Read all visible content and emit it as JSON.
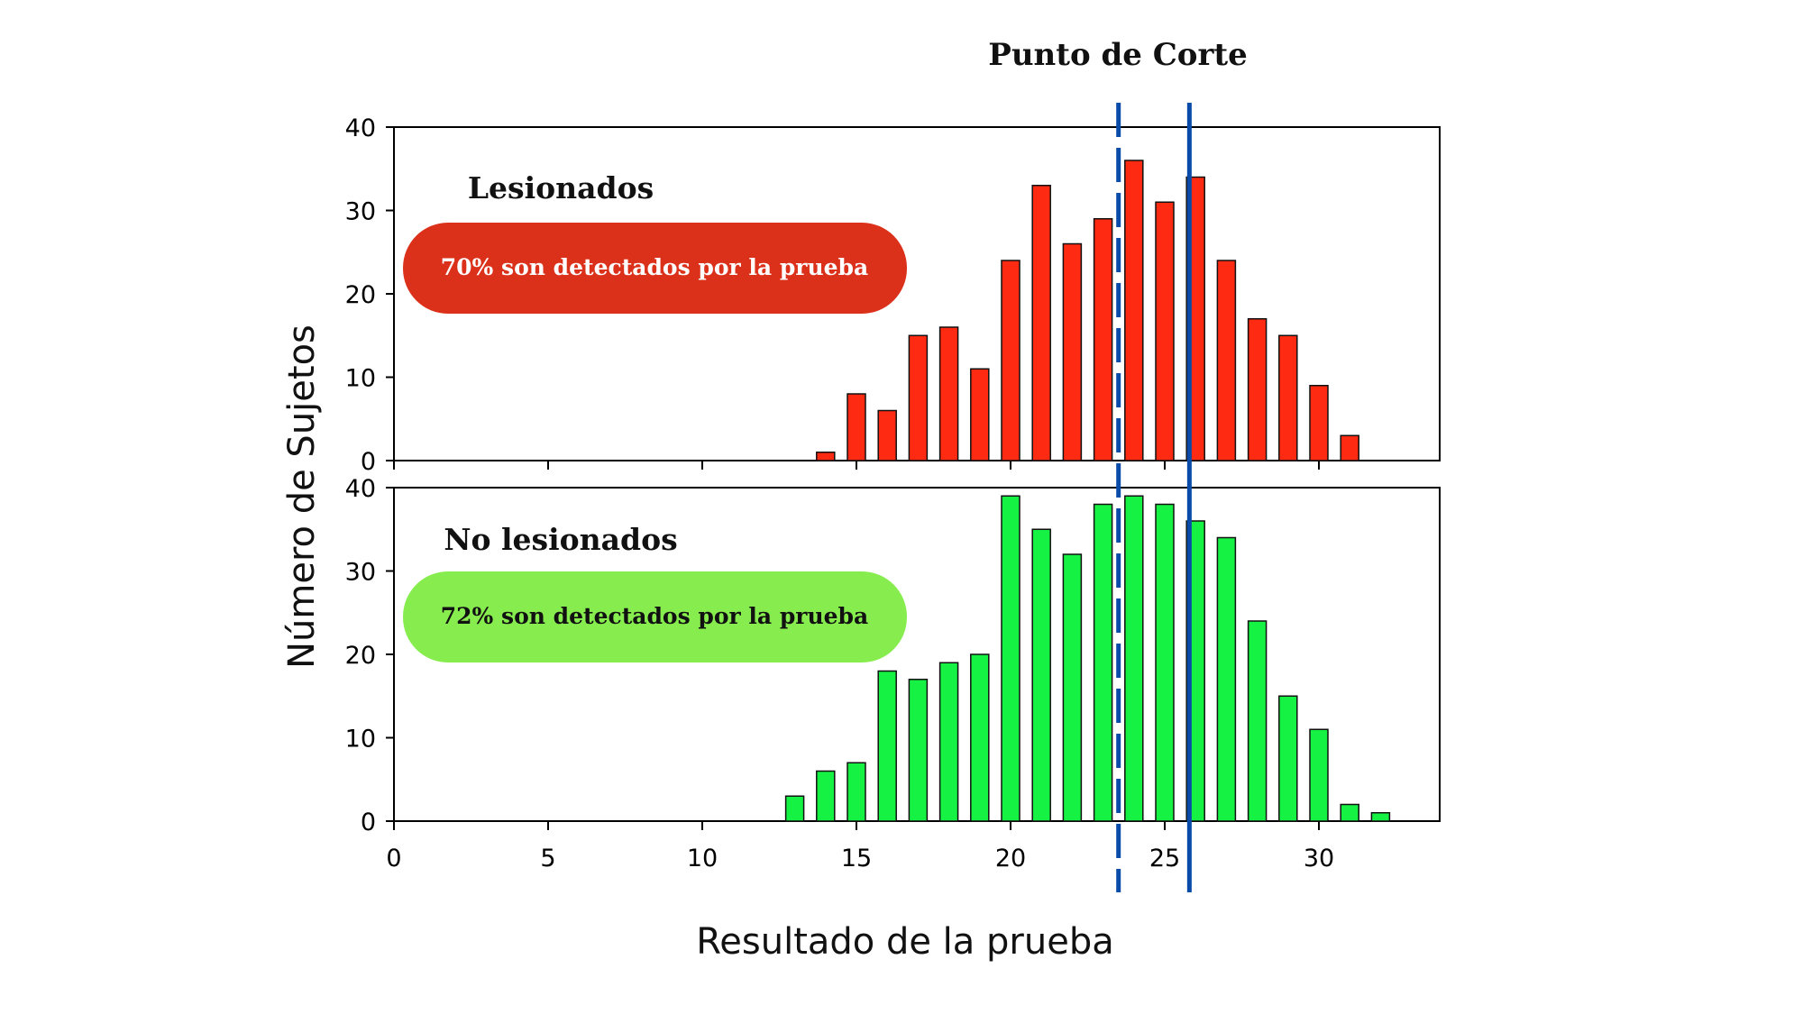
{
  "cutoff_label": "Punto de Corte",
  "colors": {
    "injured_bar": "#ff2a12",
    "uninjured_bar": "#16f243",
    "injured_pill": "#db311b",
    "uninjured_pill": "#87ed4e",
    "cutoff_line": "#0a4aa8"
  },
  "chart_data": [
    {
      "type": "bar",
      "panel": "top",
      "group_label": "Lesionados",
      "annotation": "70% son detectados por la prueba",
      "xlabel": "Resultado de la prueba",
      "ylabel": "Número de Sujetos",
      "xlim": [
        0,
        34
      ],
      "ylim": [
        0,
        40
      ],
      "yticks": [
        0,
        10,
        20,
        30,
        40
      ],
      "xticks": [
        0,
        5,
        10,
        15,
        20,
        25,
        30
      ],
      "x": [
        14,
        15,
        16,
        17,
        18,
        19,
        20,
        21,
        22,
        23,
        24,
        25,
        26,
        27,
        28,
        29,
        30,
        31
      ],
      "values": [
        1,
        8,
        6,
        15,
        16,
        11,
        24,
        33,
        26,
        29,
        36,
        31,
        34,
        24,
        17,
        15,
        9,
        3
      ]
    },
    {
      "type": "bar",
      "panel": "bottom",
      "group_label": "No lesionados",
      "annotation": "72% son detectados por la prueba",
      "xlabel": "Resultado de la prueba",
      "ylabel": "Número de Sujetos",
      "xlim": [
        0,
        34
      ],
      "ylim": [
        0,
        40
      ],
      "yticks": [
        0,
        10,
        20,
        30,
        40
      ],
      "xticks": [
        0,
        5,
        10,
        15,
        20,
        25,
        30
      ],
      "x": [
        13,
        14,
        15,
        16,
        17,
        18,
        19,
        20,
        21,
        22,
        23,
        24,
        25,
        26,
        27,
        28,
        29,
        30,
        31,
        32
      ],
      "values": [
        3,
        6,
        7,
        18,
        17,
        19,
        20,
        39,
        35,
        32,
        38,
        39,
        38,
        36,
        34,
        24,
        15,
        11,
        2,
        1
      ]
    }
  ],
  "cutoffs": [
    {
      "x": 23.5,
      "style": "dashed"
    },
    {
      "x": 25.8,
      "style": "solid"
    }
  ]
}
